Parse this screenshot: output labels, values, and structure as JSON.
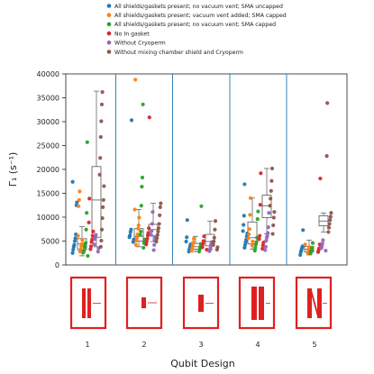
{
  "chart_data": {
    "type": "box-strip",
    "xlabel": "Qubit Design",
    "ylabel": "Γ₁ (s⁻¹)",
    "ylim": [
      0,
      40000
    ],
    "yticks": [
      0,
      5000,
      10000,
      15000,
      20000,
      25000,
      30000,
      35000,
      40000
    ],
    "categories": [
      "1",
      "2",
      "3",
      "4",
      "5"
    ],
    "legend": [
      {
        "label": "All shields/gaskets present; no vacuum vent; SMA uncapped",
        "color": "#1f77b4"
      },
      {
        "label": "All shields/gaskets present; vacuum vent added; SMA capped",
        "color": "#ff7f0e"
      },
      {
        "label": "All shields/gaskets present; no vacuum vent; SMA capped",
        "color": "#2ca02c"
      },
      {
        "label": "No In gasket",
        "color": "#d62728"
      },
      {
        "label": "Without Cryoperm",
        "color": "#9467bd"
      },
      {
        "label": "Without mixing chamber shield and Cryoperm",
        "color": "#8c564b"
      }
    ],
    "series": [
      {
        "name": "All shields/gaskets present; no vacuum vent; SMA uncapped",
        "groups": [
          [
            2500,
            3200,
            3800,
            4200,
            5000,
            5600,
            6400,
            12500,
            13100,
            17400
          ],
          [
            4800,
            5300,
            5800,
            6200,
            6900,
            7400,
            30300
          ],
          [
            2800,
            3300,
            3800,
            4300,
            4900,
            5800,
            9400
          ],
          [
            3600,
            4200,
            4800,
            5300,
            6000,
            6600,
            7100,
            8400,
            10300,
            16900
          ],
          [
            2100,
            2700,
            3100,
            3500,
            3900,
            7300
          ]
        ]
      },
      {
        "name": "All shields/gaskets present; vacuum vent added; SMA capped",
        "groups": [
          [
            2800,
            3300,
            4000,
            4400,
            5200,
            6100,
            12300,
            13600,
            15400
          ],
          [
            4200,
            5100,
            5700,
            6400,
            7600,
            8300,
            9900,
            11600,
            38800
          ],
          [
            3000,
            3500,
            4100,
            4700,
            5500
          ],
          [
            4100,
            4900,
            5600,
            6400,
            7500,
            10500,
            14000
          ],
          [
            2500,
            2900,
            3300,
            3700,
            4300
          ]
        ]
      },
      {
        "name": "All shields/gaskets present; no vacuum vent; SMA capped",
        "groups": [
          [
            1900,
            2600,
            3000,
            3700,
            4100,
            4600,
            7400,
            10900,
            25700
          ],
          [
            3600,
            4600,
            5300,
            6300,
            7000,
            12400,
            16400,
            18300,
            33600
          ],
          [
            2800,
            3300,
            3800,
            4400,
            12300
          ],
          [
            3000,
            3600,
            4300,
            4800,
            5700,
            9600,
            11200
          ],
          [
            2400,
            2800,
            3100,
            3600,
            4600
          ]
        ]
      },
      {
        "name": "No In gasket",
        "groups": [
          [
            3300,
            3900,
            4800,
            5300,
            6100,
            7000,
            8900,
            13900
          ],
          [
            4300,
            4900,
            5500,
            6200,
            6700,
            7700,
            30900
          ],
          [
            3200,
            3700,
            4400,
            5000,
            6000
          ],
          [
            3400,
            4100,
            4700,
            5400,
            6100,
            12600,
            19200
          ],
          [
            2700,
            3100,
            3500,
            4300,
            18100
          ]
        ]
      },
      {
        "name": "Without Cryoperm",
        "groups": [
          [
            2800,
            3500,
            4300,
            5400,
            5900,
            6300
          ],
          [
            3100,
            4200,
            5100,
            5800,
            6300,
            7100,
            8600,
            11100
          ],
          [
            2900,
            3200,
            3600,
            4300,
            4800
          ],
          [
            3100,
            3800,
            5100,
            5700,
            6100,
            6700,
            7900,
            10900
          ],
          [
            3000,
            3500,
            3900,
            4500,
            5200
          ]
        ]
      },
      {
        "name": "Without mixing chamber shield and Cryoperm",
        "groups": [
          [
            3800,
            5100,
            7400,
            9800,
            12100,
            13600,
            16500,
            18900,
            22400,
            26800,
            30100,
            33600,
            36200
          ],
          [
            4900,
            5600,
            6300,
            7000,
            7700,
            8600,
            10400,
            12100,
            12900
          ],
          [
            3200,
            3700,
            4200,
            4900,
            5700,
            7400,
            9200
          ],
          [
            6500,
            8300,
            9900,
            11100,
            12400,
            13900,
            15500,
            17600,
            20200
          ],
          [
            6900,
            7800,
            8600,
            9400,
            10100,
            10900,
            22800,
            33900
          ]
        ]
      }
    ],
    "boxes": [
      {
        "category": "1",
        "whisker_low": 1900,
        "q1": 3200,
        "median": 4400,
        "q3": 5500,
        "whisker_high": 8000
      },
      {
        "category": "1",
        "whisker_low": 3800,
        "q1": 5800,
        "median": 13600,
        "q3": 20600,
        "whisker_high": 36400
      },
      {
        "category": "2",
        "whisker_low": 3800,
        "q1": 5000,
        "median": 6000,
        "q3": 7600,
        "whisker_high": 11600
      },
      {
        "category": "2",
        "whisker_low": 4900,
        "q1": 6100,
        "median": 7400,
        "q3": 8500,
        "whisker_high": 12900
      },
      {
        "category": "3",
        "whisker_low": 2800,
        "q1": 3300,
        "median": 3800,
        "q3": 4500,
        "whisker_high": 6000
      },
      {
        "category": "3",
        "whisker_low": 3200,
        "q1": 4000,
        "median": 4900,
        "q3": 6400,
        "whisker_high": 9200
      },
      {
        "category": "4",
        "whisker_low": 3300,
        "q1": 4400,
        "median": 5700,
        "q3": 9000,
        "whisker_high": 14000
      },
      {
        "category": "4",
        "whisker_low": 6500,
        "q1": 9900,
        "median": 12400,
        "q3": 14600,
        "whisker_high": 20200
      },
      {
        "category": "5",
        "whisker_low": 2100,
        "q1": 2700,
        "median": 3300,
        "q3": 3900,
        "whisker_high": 5200
      },
      {
        "category": "5",
        "whisker_low": 6900,
        "q1": 8200,
        "median": 9200,
        "q3": 10300,
        "whisker_high": 10900
      }
    ]
  }
}
